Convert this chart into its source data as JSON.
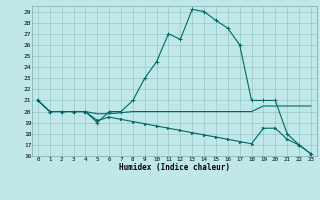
{
  "xlabel": "Humidex (Indice chaleur)",
  "bg_color": "#c0e8e8",
  "grid_color": "#90c0c0",
  "line_color": "#006868",
  "ylim": [
    16,
    29.5
  ],
  "xlim": [
    -0.5,
    23.5
  ],
  "yticks": [
    16,
    17,
    18,
    19,
    20,
    21,
    22,
    23,
    24,
    25,
    26,
    27,
    28,
    29
  ],
  "xticks": [
    0,
    1,
    2,
    3,
    4,
    5,
    6,
    7,
    8,
    9,
    10,
    11,
    12,
    13,
    14,
    15,
    16,
    17,
    18,
    19,
    20,
    21,
    22,
    23
  ],
  "line1_x": [
    0,
    1,
    2,
    3,
    4,
    5,
    6,
    7,
    8,
    9,
    10,
    11,
    12,
    13,
    14,
    15,
    16,
    17,
    18,
    19,
    20,
    21,
    22,
    23
  ],
  "line1_y": [
    21,
    20,
    20,
    20,
    20,
    19,
    20,
    20,
    21,
    23,
    24.5,
    27,
    26.5,
    29.2,
    29,
    28.2,
    27.5,
    26,
    21,
    21,
    21,
    18,
    17,
    16.2
  ],
  "line2_x": [
    0,
    1,
    2,
    3,
    4,
    5,
    6,
    7,
    8,
    9,
    10,
    11,
    12,
    13,
    14,
    15,
    16,
    17,
    18,
    19,
    20,
    21,
    22,
    23
  ],
  "line2_y": [
    21,
    20,
    20,
    20,
    20,
    19.8,
    19.8,
    19.9,
    20,
    20,
    20,
    20,
    20,
    20,
    20,
    20,
    20,
    20,
    20,
    20.5,
    20.5,
    20.5,
    20.5,
    20.5
  ],
  "line3_x": [
    0,
    1,
    2,
    3,
    4,
    5,
    6,
    7,
    8,
    9,
    10,
    11,
    12,
    13,
    14,
    15,
    16,
    17,
    18,
    19,
    20,
    21,
    22,
    23
  ],
  "line3_y": [
    21,
    20,
    20,
    20,
    20,
    19.2,
    19.5,
    19.3,
    19.1,
    18.9,
    18.7,
    18.5,
    18.3,
    18.1,
    17.9,
    17.7,
    17.5,
    17.3,
    17.1,
    18.5,
    18.5,
    17.5,
    17.0,
    16.2
  ]
}
